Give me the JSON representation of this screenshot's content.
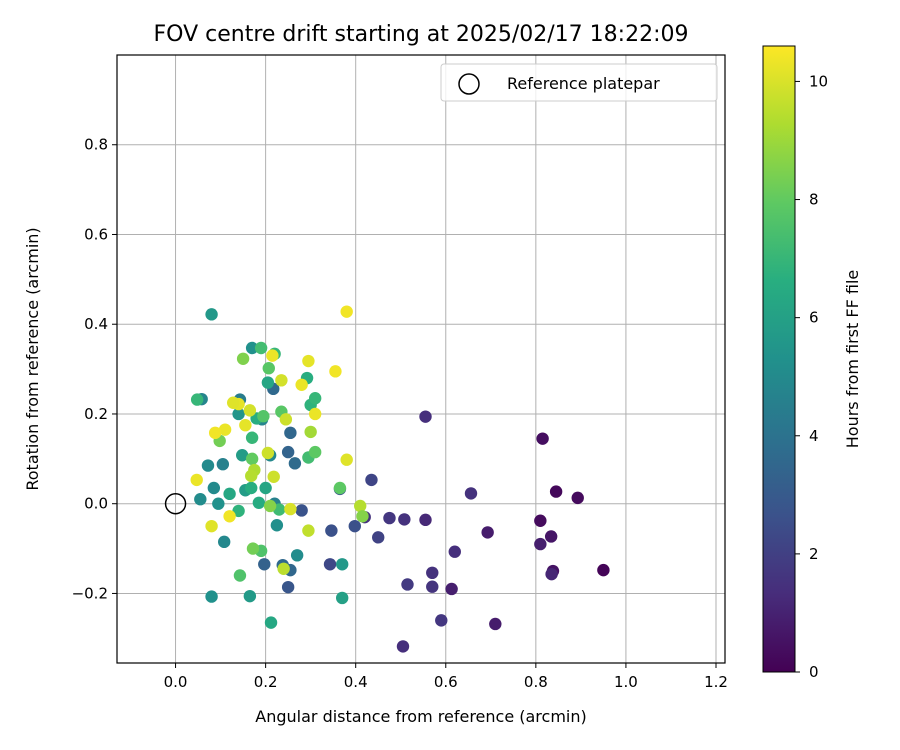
{
  "chart_data": {
    "type": "scatter",
    "title": "FOV centre drift starting at 2025/02/17 18:22:09",
    "xlabel": "Angular distance from reference (arcmin)",
    "ylabel": "Rotation from reference (arcmin)",
    "xlim": [
      -0.13,
      1.22
    ],
    "ylim": [
      -0.355,
      1.0
    ],
    "xticks": [
      0.0,
      0.2,
      0.4,
      0.6,
      0.8,
      1.0,
      1.2
    ],
    "xtick_labels": [
      "0.0",
      "0.2",
      "0.4",
      "0.6",
      "0.8",
      "1.0",
      "1.2"
    ],
    "yticks": [
      -0.2,
      0.0,
      0.2,
      0.4,
      0.6,
      0.8
    ],
    "ytick_labels": [
      "−0.2",
      "0.0",
      "0.2",
      "0.4",
      "0.6",
      "0.8"
    ],
    "grid": true,
    "legend": {
      "location": "upper right",
      "entries": [
        "Reference platepar"
      ]
    },
    "reference_point": {
      "x": 0.0,
      "y": 0.0
    },
    "colorbar": {
      "label": "Hours from first FF file",
      "range": [
        0,
        10.6
      ],
      "ticks": [
        0,
        2,
        4,
        6,
        8,
        10
      ],
      "tick_labels": [
        "0",
        "2",
        "4",
        "6",
        "8",
        "10"
      ],
      "colormap": "viridis"
    },
    "points": [
      {
        "x": 0.95,
        "y": -0.148,
        "c": 0.1
      },
      {
        "x": 0.893,
        "y": 0.013,
        "c": 0.3
      },
      {
        "x": 0.845,
        "y": 0.027,
        "c": 0.2
      },
      {
        "x": 0.838,
        "y": -0.15,
        "c": 0.5
      },
      {
        "x": 0.834,
        "y": -0.073,
        "c": 0.6
      },
      {
        "x": 0.815,
        "y": 0.145,
        "c": 0.4
      },
      {
        "x": 0.81,
        "y": -0.038,
        "c": 0.3
      },
      {
        "x": 0.81,
        "y": -0.09,
        "c": 0.9
      },
      {
        "x": 0.835,
        "y": -0.157,
        "c": 1.1
      },
      {
        "x": 0.71,
        "y": -0.268,
        "c": 0.8
      },
      {
        "x": 0.693,
        "y": -0.064,
        "c": 0.8
      },
      {
        "x": 0.656,
        "y": 0.023,
        "c": 1.5
      },
      {
        "x": 0.62,
        "y": -0.107,
        "c": 1.4
      },
      {
        "x": 0.613,
        "y": -0.19,
        "c": 0.9
      },
      {
        "x": 0.59,
        "y": -0.26,
        "c": 1.7
      },
      {
        "x": 0.57,
        "y": -0.154,
        "c": 1.5
      },
      {
        "x": 0.57,
        "y": -0.185,
        "c": 1.6
      },
      {
        "x": 0.555,
        "y": -0.036,
        "c": 1.2
      },
      {
        "x": 0.555,
        "y": 0.194,
        "c": 1.4
      },
      {
        "x": 0.515,
        "y": -0.18,
        "c": 1.8
      },
      {
        "x": 0.508,
        "y": -0.035,
        "c": 1.5
      },
      {
        "x": 0.505,
        "y": -0.318,
        "c": 1.4
      },
      {
        "x": 0.475,
        "y": -0.032,
        "c": 1.7
      },
      {
        "x": 0.45,
        "y": -0.075,
        "c": 2.1
      },
      {
        "x": 0.435,
        "y": 0.053,
        "c": 2.2
      },
      {
        "x": 0.42,
        "y": -0.03,
        "c": 1.5
      },
      {
        "x": 0.398,
        "y": -0.05,
        "c": 2.6
      },
      {
        "x": 0.346,
        "y": -0.06,
        "c": 2.6
      },
      {
        "x": 0.343,
        "y": -0.135,
        "c": 2.3
      },
      {
        "x": 0.365,
        "y": 0.033,
        "c": 2.8
      },
      {
        "x": 0.28,
        "y": -0.015,
        "c": 2.7
      },
      {
        "x": 0.265,
        "y": 0.09,
        "c": 3.7
      },
      {
        "x": 0.255,
        "y": 0.158,
        "c": 3.5
      },
      {
        "x": 0.25,
        "y": 0.115,
        "c": 3.4
      },
      {
        "x": 0.25,
        "y": -0.186,
        "c": 2.8
      },
      {
        "x": 0.255,
        "y": -0.148,
        "c": 3.5
      },
      {
        "x": 0.217,
        "y": 0.256,
        "c": 3.6
      },
      {
        "x": 0.238,
        "y": -0.137,
        "c": 3.6
      },
      {
        "x": 0.22,
        "y": 0.0,
        "c": 4.6
      },
      {
        "x": 0.225,
        "y": -0.048,
        "c": 5.2
      },
      {
        "x": 0.197,
        "y": -0.135,
        "c": 3.3
      },
      {
        "x": 0.192,
        "y": 0.188,
        "c": 4.8
      },
      {
        "x": 0.27,
        "y": -0.115,
        "c": 5.1
      },
      {
        "x": 0.21,
        "y": 0.108,
        "c": 4.9
      },
      {
        "x": 0.17,
        "y": 0.347,
        "c": 5.3
      },
      {
        "x": 0.155,
        "y": 0.03,
        "c": 5.8
      },
      {
        "x": 0.143,
        "y": 0.232,
        "c": 4.4
      },
      {
        "x": 0.14,
        "y": 0.2,
        "c": 5.5
      },
      {
        "x": 0.12,
        "y": 0.022,
        "c": 6.3
      },
      {
        "x": 0.105,
        "y": 0.088,
        "c": 4.6
      },
      {
        "x": 0.108,
        "y": -0.085,
        "c": 4.9
      },
      {
        "x": 0.095,
        "y": 0.0,
        "c": 5.3
      },
      {
        "x": 0.085,
        "y": 0.035,
        "c": 5.0
      },
      {
        "x": 0.072,
        "y": 0.085,
        "c": 5.0
      },
      {
        "x": 0.08,
        "y": 0.422,
        "c": 5.6
      },
      {
        "x": 0.058,
        "y": 0.233,
        "c": 4.8
      },
      {
        "x": 0.055,
        "y": 0.01,
        "c": 5.1
      },
      {
        "x": 0.08,
        "y": -0.207,
        "c": 5.3
      },
      {
        "x": 0.165,
        "y": -0.206,
        "c": 5.7
      },
      {
        "x": 0.212,
        "y": -0.265,
        "c": 6.3
      },
      {
        "x": 0.148,
        "y": 0.108,
        "c": 5.8
      },
      {
        "x": 0.2,
        "y": 0.035,
        "c": 6.2
      },
      {
        "x": 0.205,
        "y": 0.27,
        "c": 6.2
      },
      {
        "x": 0.185,
        "y": 0.002,
        "c": 6.5
      },
      {
        "x": 0.18,
        "y": 0.19,
        "c": 6.6
      },
      {
        "x": 0.37,
        "y": -0.135,
        "c": 5.6
      },
      {
        "x": 0.37,
        "y": -0.21,
        "c": 6.0
      },
      {
        "x": 0.292,
        "y": 0.28,
        "c": 6.6
      },
      {
        "x": 0.3,
        "y": 0.22,
        "c": 6.8
      },
      {
        "x": 0.31,
        "y": 0.235,
        "c": 7.0
      },
      {
        "x": 0.22,
        "y": 0.334,
        "c": 7.0
      },
      {
        "x": 0.19,
        "y": 0.347,
        "c": 7.3
      },
      {
        "x": 0.048,
        "y": 0.232,
        "c": 7.0
      },
      {
        "x": 0.14,
        "y": -0.016,
        "c": 6.8
      },
      {
        "x": 0.17,
        "y": 0.147,
        "c": 7.0
      },
      {
        "x": 0.168,
        "y": 0.035,
        "c": 6.6
      },
      {
        "x": 0.195,
        "y": 0.195,
        "c": 7.7
      },
      {
        "x": 0.207,
        "y": 0.302,
        "c": 7.8
      },
      {
        "x": 0.23,
        "y": -0.013,
        "c": 7.2
      },
      {
        "x": 0.295,
        "y": 0.103,
        "c": 7.3
      },
      {
        "x": 0.31,
        "y": 0.115,
        "c": 7.9
      },
      {
        "x": 0.235,
        "y": 0.205,
        "c": 7.8
      },
      {
        "x": 0.19,
        "y": -0.105,
        "c": 7.6
      },
      {
        "x": 0.143,
        "y": -0.16,
        "c": 7.6
      },
      {
        "x": 0.365,
        "y": 0.035,
        "c": 7.9
      },
      {
        "x": 0.17,
        "y": 0.1,
        "c": 8.0
      },
      {
        "x": 0.172,
        "y": -0.1,
        "c": 8.3
      },
      {
        "x": 0.15,
        "y": 0.323,
        "c": 8.5
      },
      {
        "x": 0.098,
        "y": 0.14,
        "c": 8.3
      },
      {
        "x": 0.21,
        "y": -0.005,
        "c": 8.6
      },
      {
        "x": 0.3,
        "y": 0.16,
        "c": 9.1
      },
      {
        "x": 0.175,
        "y": 0.075,
        "c": 9.3
      },
      {
        "x": 0.41,
        "y": -0.005,
        "c": 9.4
      },
      {
        "x": 0.415,
        "y": -0.028,
        "c": 8.6
      },
      {
        "x": 0.168,
        "y": 0.062,
        "c": 9.4
      },
      {
        "x": 0.295,
        "y": -0.06,
        "c": 9.6
      },
      {
        "x": 0.24,
        "y": -0.145,
        "c": 9.5
      },
      {
        "x": 0.218,
        "y": 0.06,
        "c": 9.8
      },
      {
        "x": 0.255,
        "y": -0.012,
        "c": 10.0
      },
      {
        "x": 0.205,
        "y": 0.113,
        "c": 9.8
      },
      {
        "x": 0.245,
        "y": 0.188,
        "c": 9.8
      },
      {
        "x": 0.235,
        "y": 0.275,
        "c": 9.9
      },
      {
        "x": 0.165,
        "y": 0.208,
        "c": 9.9
      },
      {
        "x": 0.14,
        "y": 0.222,
        "c": 10.2
      },
      {
        "x": 0.128,
        "y": 0.225,
        "c": 10.1
      },
      {
        "x": 0.11,
        "y": 0.165,
        "c": 10.3
      },
      {
        "x": 0.088,
        "y": 0.158,
        "c": 10.4
      },
      {
        "x": 0.155,
        "y": 0.175,
        "c": 10.2
      },
      {
        "x": 0.08,
        "y": -0.05,
        "c": 10.1
      },
      {
        "x": 0.12,
        "y": -0.028,
        "c": 10.4
      },
      {
        "x": 0.047,
        "y": 0.053,
        "c": 10.3
      },
      {
        "x": 0.215,
        "y": 0.33,
        "c": 10.3
      },
      {
        "x": 0.28,
        "y": 0.265,
        "c": 10.3
      },
      {
        "x": 0.295,
        "y": 0.318,
        "c": 10.2
      },
      {
        "x": 0.31,
        "y": 0.2,
        "c": 10.3
      },
      {
        "x": 0.355,
        "y": 0.295,
        "c": 10.4
      },
      {
        "x": 0.38,
        "y": 0.098,
        "c": 10.1
      },
      {
        "x": 0.38,
        "y": 0.428,
        "c": 10.4
      }
    ]
  }
}
